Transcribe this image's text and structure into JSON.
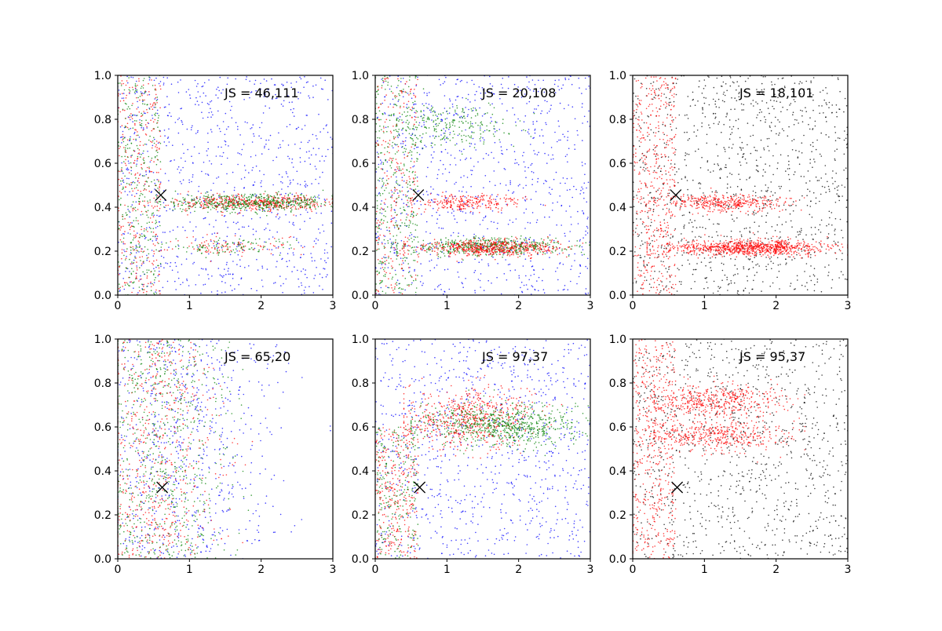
{
  "chart_data": [
    {
      "type": "scatter",
      "annotation": "JS = 46,111",
      "xlim": [
        0,
        3
      ],
      "ylim": [
        0,
        1
      ],
      "x_ticks": [
        "0",
        "1",
        "2",
        "3"
      ],
      "y_ticks": [
        "0.0",
        "0.2",
        "0.4",
        "0.6",
        "0.8",
        "1.0"
      ],
      "marker": {
        "x": 0.6,
        "y": 0.455
      },
      "series": [
        {
          "color": "#0000ff",
          "clusters": [
            {
              "n": 900,
              "x": [
                0,
                3
              ],
              "y": [
                0,
                1
              ],
              "xdist": "uniform",
              "ydist": "uniform"
            }
          ]
        },
        {
          "color": "#ff0000",
          "clusters": [
            {
              "n": 320,
              "x": [
                0,
                0.6
              ],
              "y": [
                0,
                1
              ],
              "xdist": "uniform",
              "ydist": "uniform"
            },
            {
              "n": 480,
              "xmu": 1.9,
              "xsd": 0.55,
              "ymu": 0.42,
              "ysd": 0.018,
              "x": [
                0.3,
                3
              ]
            },
            {
              "n": 100,
              "xmu": 1.5,
              "xsd": 0.45,
              "ymu": 0.22,
              "ysd": 0.02,
              "x": [
                0.3,
                3
              ]
            }
          ]
        },
        {
          "color": "#008000",
          "clusters": [
            {
              "n": 320,
              "x": [
                0,
                0.6
              ],
              "y": [
                0,
                1
              ],
              "xdist": "uniform",
              "ydist": "uniform"
            },
            {
              "n": 500,
              "xmu": 1.9,
              "xsd": 0.6,
              "ymu": 0.42,
              "ysd": 0.02,
              "x": [
                0.3,
                3
              ]
            },
            {
              "n": 100,
              "xmu": 1.5,
              "xsd": 0.45,
              "ymu": 0.22,
              "ysd": 0.02,
              "x": [
                0.3,
                3
              ]
            }
          ]
        }
      ]
    },
    {
      "type": "scatter",
      "annotation": "JS = 20,108",
      "xlim": [
        0,
        3
      ],
      "ylim": [
        0,
        1
      ],
      "x_ticks": [
        "0",
        "1",
        "2",
        "3"
      ],
      "y_ticks": [
        "0.0",
        "0.2",
        "0.4",
        "0.6",
        "0.8",
        "1.0"
      ],
      "marker": {
        "x": 0.6,
        "y": 0.455
      },
      "series": [
        {
          "color": "#0000ff",
          "clusters": [
            {
              "n": 900,
              "x": [
                0,
                3
              ],
              "y": [
                0,
                1
              ],
              "xdist": "uniform",
              "ydist": "uniform"
            }
          ]
        },
        {
          "color": "#008000",
          "clusters": [
            {
              "n": 380,
              "x": [
                0,
                0.6
              ],
              "y": [
                0,
                1
              ],
              "xdist": "uniform",
              "ydist": "uniform"
            },
            {
              "n": 240,
              "xmu": 1.1,
              "xsd": 0.4,
              "ymu": 0.78,
              "ysd": 0.05,
              "x": [
                0.3,
                2.4
              ]
            },
            {
              "n": 500,
              "xmu": 1.6,
              "xsd": 0.55,
              "ymu": 0.22,
              "ysd": 0.02,
              "x": [
                0.3,
                3
              ]
            }
          ]
        },
        {
          "color": "#ff0000",
          "clusters": [
            {
              "n": 240,
              "x": [
                0,
                0.6
              ],
              "y": [
                0,
                1
              ],
              "xdist": "uniform",
              "ydist": "uniform"
            },
            {
              "n": 250,
              "xmu": 1.3,
              "xsd": 0.35,
              "ymu": 0.42,
              "ysd": 0.018,
              "x": [
                0.5,
                2.4
              ]
            },
            {
              "n": 550,
              "xmu": 1.6,
              "xsd": 0.5,
              "ymu": 0.215,
              "ysd": 0.018,
              "x": [
                0.4,
                3
              ]
            }
          ]
        }
      ]
    },
    {
      "type": "scatter",
      "annotation": "JS = 18,101",
      "xlim": [
        0,
        3
      ],
      "ylim": [
        0,
        1
      ],
      "x_ticks": [
        "0",
        "1",
        "2",
        "3"
      ],
      "y_ticks": [
        "0.0",
        "0.2",
        "0.4",
        "0.6",
        "0.8",
        "1.0"
      ],
      "marker": {
        "x": 0.6,
        "y": 0.455
      },
      "series": [
        {
          "color": "#000000",
          "clusters": [
            {
              "n": 1100,
              "x": [
                0,
                3
              ],
              "y": [
                0,
                1
              ],
              "xdist": "uniform",
              "ydist": "uniform"
            }
          ]
        },
        {
          "color": "#ff0000",
          "clusters": [
            {
              "n": 450,
              "x": [
                0,
                0.6
              ],
              "y": [
                0,
                1
              ],
              "xdist": "uniform",
              "ydist": "uniform"
            },
            {
              "n": 380,
              "xmu": 1.3,
              "xsd": 0.4,
              "ymu": 0.42,
              "ysd": 0.02,
              "x": [
                0.3,
                2.4
              ]
            },
            {
              "n": 900,
              "xmu": 1.6,
              "xsd": 0.55,
              "ymu": 0.215,
              "ysd": 0.018,
              "x": [
                0.2,
                3
              ]
            }
          ]
        }
      ]
    },
    {
      "type": "scatter",
      "annotation": "JS = 65,20",
      "xlim": [
        0,
        3
      ],
      "ylim": [
        0,
        1
      ],
      "x_ticks": [
        "0",
        "1",
        "2",
        "3"
      ],
      "y_ticks": [
        "0.0",
        "0.2",
        "0.4",
        "0.6",
        "0.8",
        "1.0"
      ],
      "marker": {
        "x": 0.62,
        "y": 0.325
      },
      "series": [
        {
          "color": "#0000ff",
          "clusters": [
            {
              "n": 750,
              "xmu": 0.9,
              "xsd": 0.7,
              "x": [
                0,
                3
              ],
              "y": [
                0,
                1
              ],
              "ydist": "uniform"
            }
          ]
        },
        {
          "color": "#ff0000",
          "clusters": [
            {
              "n": 650,
              "xmu": 0.5,
              "xsd": 0.45,
              "x": [
                0,
                2.2
              ],
              "y": [
                0,
                1
              ],
              "ydist": "uniform"
            }
          ]
        },
        {
          "color": "#008000",
          "clusters": [
            {
              "n": 750,
              "xmu": 0.55,
              "xsd": 0.5,
              "x": [
                0,
                2.4
              ],
              "y": [
                0,
                1
              ],
              "ydist": "uniform"
            }
          ]
        }
      ]
    },
    {
      "type": "scatter",
      "annotation": "JS = 97,37",
      "xlim": [
        0,
        3
      ],
      "ylim": [
        0,
        1
      ],
      "x_ticks": [
        "0",
        "1",
        "2",
        "3"
      ],
      "y_ticks": [
        "0.0",
        "0.2",
        "0.4",
        "0.6",
        "0.8",
        "1.0"
      ],
      "marker": {
        "x": 0.62,
        "y": 0.325
      },
      "series": [
        {
          "color": "#0000ff",
          "clusters": [
            {
              "n": 900,
              "x": [
                0,
                3
              ],
              "y": [
                0,
                1
              ],
              "xdist": "uniform",
              "ydist": "uniform"
            }
          ]
        },
        {
          "color": "#ff0000",
          "clusters": [
            {
              "n": 320,
              "x": [
                0,
                0.6
              ],
              "y": [
                0,
                0.6
              ],
              "xdist": "uniform",
              "ydist": "uniform"
            },
            {
              "n": 600,
              "xmu": 1.3,
              "xsd": 0.45,
              "ymu": 0.64,
              "ysd": 0.07,
              "x": [
                0.4,
                2.6
              ]
            }
          ]
        },
        {
          "color": "#008000",
          "clusters": [
            {
              "n": 220,
              "x": [
                0,
                0.6
              ],
              "y": [
                0,
                0.6
              ],
              "xdist": "uniform",
              "ydist": "uniform"
            },
            {
              "n": 700,
              "xmu": 1.8,
              "xsd": 0.55,
              "ymu": 0.61,
              "ysd": 0.05,
              "x": [
                0.5,
                3
              ]
            }
          ]
        }
      ]
    },
    {
      "type": "scatter",
      "annotation": "JS = 95,37",
      "xlim": [
        0,
        3
      ],
      "ylim": [
        0,
        1
      ],
      "x_ticks": [
        "0",
        "1",
        "2",
        "3"
      ],
      "y_ticks": [
        "0.0",
        "0.2",
        "0.4",
        "0.6",
        "0.8",
        "1.0"
      ],
      "marker": {
        "x": 0.62,
        "y": 0.325
      },
      "series": [
        {
          "color": "#000000",
          "clusters": [
            {
              "n": 1000,
              "x": [
                0,
                3
              ],
              "y": [
                0,
                1
              ],
              "xdist": "uniform",
              "ydist": "uniform"
            }
          ]
        },
        {
          "color": "#ff0000",
          "clusters": [
            {
              "n": 480,
              "x": [
                0,
                0.6
              ],
              "y": [
                0,
                1
              ],
              "xdist": "uniform",
              "ydist": "uniform"
            },
            {
              "n": 450,
              "xmu": 1.15,
              "xsd": 0.45,
              "ymu": 0.72,
              "ysd": 0.035,
              "x": [
                0.3,
                2.4
              ]
            },
            {
              "n": 420,
              "xmu": 1.2,
              "xsd": 0.5,
              "ymu": 0.56,
              "ysd": 0.035,
              "x": [
                0.3,
                2.4
              ]
            }
          ]
        }
      ]
    }
  ]
}
